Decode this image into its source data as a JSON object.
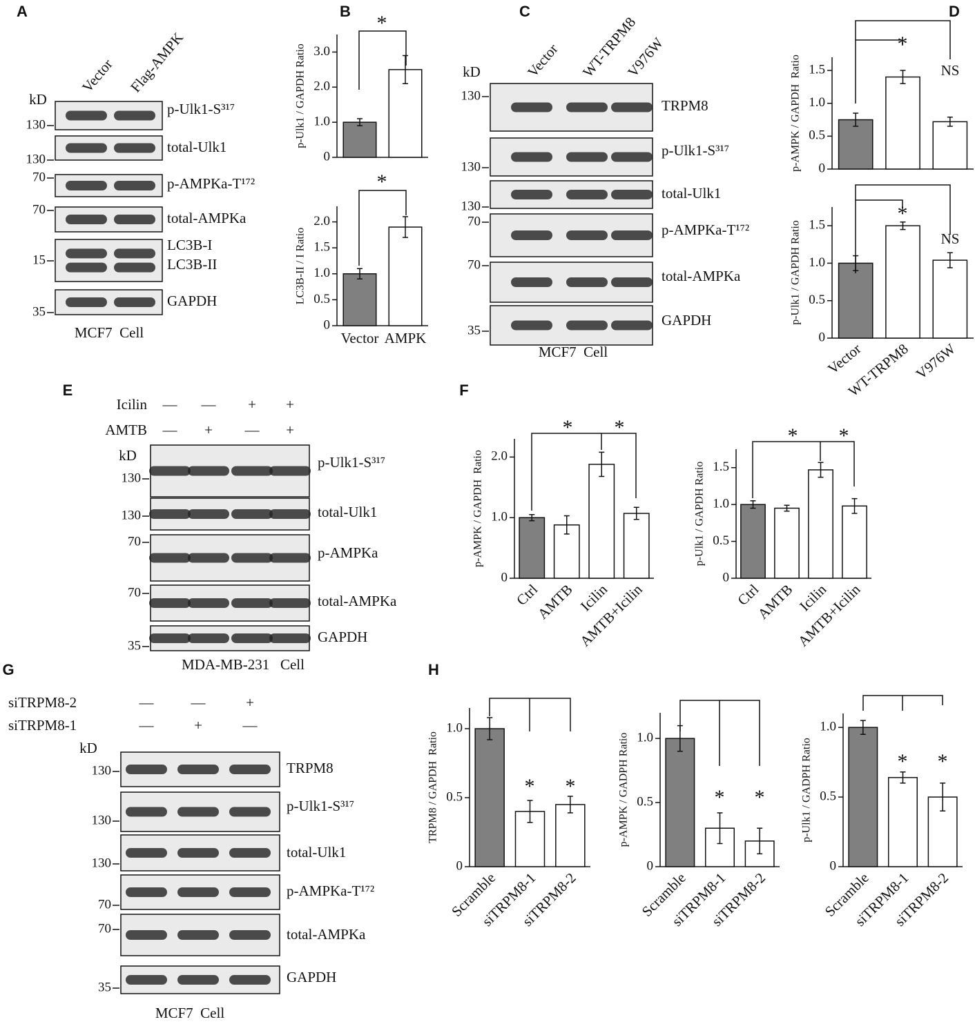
{
  "panels": [
    "A",
    "B",
    "C",
    "D",
    "E",
    "F",
    "G",
    "H"
  ],
  "blots": [
    {
      "lanes": [
        "Vector",
        "Flag-AMPK"
      ],
      "kd": "kD",
      "rows": [
        {
          "labels": [
            "p-Ulk1-S³¹⁷"
          ],
          "marker": 130
        },
        {
          "labels": [
            "total-Ulk1"
          ],
          "marker": 130
        },
        {
          "labels": [
            "p-AMPKa-T¹⁷²"
          ],
          "marker": 70
        },
        {
          "labels": [
            "total-AMPKa"
          ],
          "marker": 70
        },
        {
          "labels": [
            "LC3B-I",
            "LC3B-II"
          ],
          "marker": 15
        },
        {
          "labels": [
            "GAPDH"
          ],
          "marker": 35
        }
      ],
      "footer": "MCF7  Cell"
    },
    {
      "lanes": [
        "Vector",
        "WT-TRPM8",
        "V976W"
      ],
      "kd": "kD",
      "rows": [
        {
          "labels": [
            "TRPM8"
          ],
          "marker": 130
        },
        {
          "labels": [
            "p-Ulk1-S³¹⁷"
          ],
          "marker": 130
        },
        {
          "labels": [
            "total-Ulk1"
          ],
          "marker": 130
        },
        {
          "labels": [
            "p-AMPKa-T¹⁷²"
          ],
          "marker": 70
        },
        {
          "labels": [
            "total-AMPKa"
          ],
          "marker": 70
        },
        {
          "labels": [
            "GAPDH"
          ],
          "marker": 35
        }
      ],
      "footer": "MCF7  Cell"
    },
    {
      "treatments": [
        {
          "label": "Icilin",
          "signs": [
            "—",
            "—",
            "+",
            "+"
          ]
        },
        {
          "label": "AMTB",
          "signs": [
            "—",
            "+",
            "—",
            "+"
          ]
        }
      ],
      "kd": "kD",
      "rows": [
        {
          "labels": [
            "p-Ulk1-S³¹⁷"
          ],
          "marker": 130
        },
        {
          "labels": [
            "total-Ulk1"
          ],
          "marker": 130
        },
        {
          "labels": [
            "p-AMPKa"
          ],
          "marker": 70
        },
        {
          "labels": [
            "total-AMPKa"
          ],
          "marker": 70
        },
        {
          "labels": [
            "GAPDH"
          ],
          "marker": 35
        }
      ],
      "footer": "MDA-MB-231   Cell"
    },
    {
      "treatments": [
        {
          "label": "siTRPM8-2",
          "signs": [
            "—",
            "—",
            "+"
          ]
        },
        {
          "label": "siTRPM8-1",
          "signs": [
            "—",
            "+",
            "—"
          ]
        }
      ],
      "kd": "kD",
      "rows": [
        {
          "labels": [
            "TRPM8"
          ],
          "marker": 130
        },
        {
          "labels": [
            "p-Ulk1-S³¹⁷"
          ],
          "marker": 130
        },
        {
          "labels": [
            "total-Ulk1"
          ],
          "marker": 130
        },
        {
          "labels": [
            "p-AMPKa-T¹⁷²"
          ],
          "marker": 70
        },
        {
          "labels": [
            "total-AMPKa"
          ],
          "marker": 70
        },
        {
          "labels": [
            "GAPDH"
          ],
          "marker": 35
        }
      ],
      "footer": "MCF7  Cell"
    }
  ],
  "chart_data": [
    {
      "type": "bar",
      "ylabel": "p-Ulk1 / GAPDH Ratio",
      "categories": [
        null,
        null
      ],
      "values": [
        1.0,
        2.5
      ],
      "errors": [
        0.1,
        0.4
      ],
      "colors": [
        "#808080",
        "#ffffff"
      ],
      "ylim": [
        0,
        3.5
      ],
      "yticks": [
        0,
        {
          "value": 1,
          "label": "1.0"
        },
        {
          "value": 2,
          "label": "2.0"
        },
        {
          "value": 3,
          "label": "3.0"
        }
      ],
      "annotations": [
        "*"
      ]
    },
    {
      "type": "bar",
      "ylabel": "LC3B-II / I Ratio",
      "categories": [
        "Vector",
        "AMPK"
      ],
      "values": [
        1.0,
        1.9
      ],
      "errors": [
        0.1,
        0.2
      ],
      "colors": [
        "#808080",
        "#ffffff"
      ],
      "ylim": [
        0,
        2.3
      ],
      "yticks": [
        0,
        0.5,
        {
          "value": 1,
          "label": "1.0"
        },
        1.5,
        {
          "value": 2,
          "label": "2.0"
        }
      ],
      "annotations": [
        "*"
      ]
    },
    {
      "type": "bar",
      "ylabel": "p-AMPK / GAPDH  Ratio",
      "categories": [
        null,
        null,
        null
      ],
      "values": [
        0.75,
        1.4,
        0.72
      ],
      "errors": [
        0.1,
        0.1,
        0.07
      ],
      "colors": [
        "#808080",
        "#ffffff",
        "#ffffff"
      ],
      "ylim": [
        0,
        1.7
      ],
      "yticks": [
        0,
        0.5,
        {
          "value": 1,
          "label": "1.0"
        },
        1.5
      ],
      "annotations": [
        "*",
        "NS"
      ]
    },
    {
      "type": "bar",
      "ylabel": "p-Ulk1 / GAPDH Ratio",
      "categories": [
        "Vector",
        "WT-TRPM8",
        "V976W"
      ],
      "values": [
        1.0,
        1.5,
        1.04
      ],
      "errors": [
        0.1,
        0.05,
        0.1
      ],
      "colors": [
        "#808080",
        "#ffffff",
        "#ffffff"
      ],
      "ylim": [
        0,
        1.75
      ],
      "yticks": [
        0,
        0.5,
        {
          "value": 1,
          "label": "1.0"
        },
        1.5
      ],
      "annotations": [
        "*",
        "NS"
      ]
    },
    {
      "type": "bar",
      "ylabel": "p-AMPK / GAPDH  Ratio",
      "categories": [
        "Ctrl",
        "AMTB",
        "Icilin",
        "AMTB+Icilin"
      ],
      "values": [
        1.0,
        0.88,
        1.88,
        1.07
      ],
      "errors": [
        0.05,
        0.15,
        0.2,
        0.1
      ],
      "colors": [
        "#808080",
        "#ffffff",
        "#ffffff",
        "#ffffff"
      ],
      "ylim": [
        0,
        2.3
      ],
      "yticks": [
        0,
        {
          "value": 1,
          "label": "1.0"
        },
        {
          "value": 2,
          "label": "2.0"
        }
      ],
      "annotations": [
        "*",
        "*"
      ]
    },
    {
      "type": "bar",
      "ylabel": "p-Ulk1 / GAPDH Ratio",
      "categories": [
        "Ctrl",
        "AMTB",
        "Icilin",
        "AMTB+Icilin"
      ],
      "values": [
        1.0,
        0.95,
        1.47,
        0.98
      ],
      "errors": [
        0.05,
        0.04,
        0.1,
        0.1
      ],
      "colors": [
        "#808080",
        "#ffffff",
        "#ffffff",
        "#ffffff"
      ],
      "ylim": [
        0,
        1.75
      ],
      "yticks": [
        0,
        0.5,
        {
          "value": 1,
          "label": "1.0"
        },
        1.5
      ],
      "annotations": [
        "*",
        "*"
      ]
    },
    {
      "type": "bar",
      "ylabel": "TRPM8 / GAPDH  Ratio",
      "categories": [
        "Scramble",
        "siTRPM8-1",
        "siTRPM8-2"
      ],
      "values": [
        1.0,
        0.4,
        0.45
      ],
      "errors": [
        0.08,
        0.08,
        0.06
      ],
      "colors": [
        "#808080",
        "#ffffff",
        "#ffffff"
      ],
      "ylim": [
        0,
        1.15
      ],
      "yticks": [
        0,
        0.5,
        {
          "value": 1,
          "label": "1.0"
        }
      ],
      "annotations": [
        "*",
        "*"
      ]
    },
    {
      "type": "bar",
      "ylabel": "p-AMPK / GADPH Ratio",
      "categories": [
        "Scramble",
        "siTRPM8-1",
        "siTRPM8-2"
      ],
      "values": [
        1.0,
        0.3,
        0.2
      ],
      "errors": [
        0.1,
        0.12,
        0.1
      ],
      "colors": [
        "#808080",
        "#ffffff",
        "#ffffff"
      ],
      "ylim": [
        0,
        1.2
      ],
      "yticks": [
        0,
        0.5,
        {
          "value": 1,
          "label": "1.0"
        }
      ],
      "annotations": [
        "*",
        "*"
      ]
    },
    {
      "type": "bar",
      "ylabel": "p-Ulk1 / GADPH Ratio",
      "categories": [
        "Scramble",
        "siTRPM8-1",
        "siTRPM8-2"
      ],
      "values": [
        1.0,
        0.64,
        0.5
      ],
      "errors": [
        0.05,
        0.04,
        0.1
      ],
      "colors": [
        "#808080",
        "#ffffff",
        "#ffffff"
      ],
      "ylim": [
        0,
        1.1
      ],
      "yticks": [
        0,
        0.5,
        {
          "value": 1,
          "label": "1.0"
        }
      ],
      "annotations": [
        "*",
        "*"
      ]
    }
  ]
}
